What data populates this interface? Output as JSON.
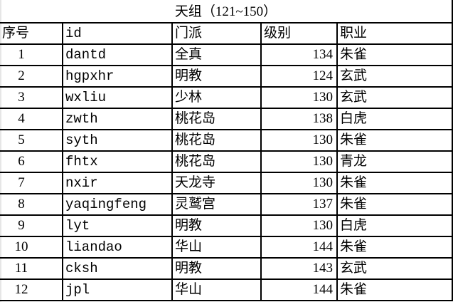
{
  "title": "天组（121~150）",
  "headers": [
    "序号",
    "id",
    "门派",
    "级别",
    "职业"
  ],
  "rows": [
    {
      "no": "1",
      "id": "dantd",
      "sect": "全真",
      "level": "134",
      "job": "朱雀"
    },
    {
      "no": "2",
      "id": "hgpxhr",
      "sect": "明教",
      "level": "124",
      "job": "玄武"
    },
    {
      "no": "3",
      "id": "wxliu",
      "sect": "少林",
      "level": "130",
      "job": "玄武"
    },
    {
      "no": "4",
      "id": "zwth",
      "sect": "桃花岛",
      "level": "138",
      "job": "白虎"
    },
    {
      "no": "5",
      "id": "syth",
      "sect": "桃花岛",
      "level": "130",
      "job": "朱雀"
    },
    {
      "no": "6",
      "id": "fhtx",
      "sect": "桃花岛",
      "level": "130",
      "job": "青龙"
    },
    {
      "no": "7",
      "id": "nxir",
      "sect": "天龙寺",
      "level": "130",
      "job": "朱雀"
    },
    {
      "no": "8",
      "id": "yaqingfeng",
      "sect": "灵鹫宫",
      "level": "137",
      "job": "朱雀"
    },
    {
      "no": "9",
      "id": "lyt",
      "sect": "明教",
      "level": "130",
      "job": "白虎"
    },
    {
      "no": "10",
      "id": "liandao",
      "sect": "华山",
      "level": "144",
      "job": "朱雀"
    },
    {
      "no": "11",
      "id": "cksh",
      "sect": "明教",
      "level": "143",
      "job": "玄武"
    },
    {
      "no": "12",
      "id": "jpl",
      "sect": "华山",
      "level": "144",
      "job": "朱雀"
    }
  ]
}
